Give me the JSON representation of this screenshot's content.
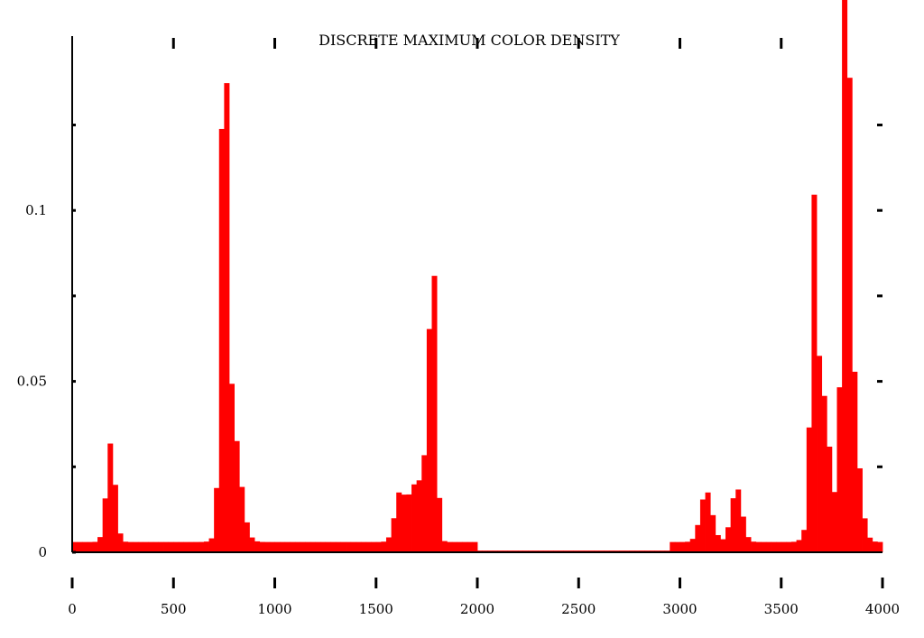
{
  "chart_data": {
    "type": "bar",
    "title": "DISCRETE MAXIMUM COLOR DENSITY",
    "xlabel": "",
    "ylabel": "",
    "xlim": [
      0,
      4000
    ],
    "ylim": [
      0,
      0.151
    ],
    "x_ticks": [
      0,
      500,
      1000,
      1500,
      2000,
      2500,
      3000,
      3500,
      4000
    ],
    "x_tick_labels": [
      "0",
      "500",
      "1000",
      "1500",
      "2000",
      "2500",
      "3000",
      "3500",
      "4000"
    ],
    "y_ticks": [
      0,
      0.05,
      0.1
    ],
    "y_tick_labels": [
      "0",
      "0.05",
      "0.1"
    ],
    "bin_width": 25,
    "bar_color": "#ff0000",
    "grid": false,
    "peaks": [
      {
        "x": 190,
        "y": 0.029,
        "w": 45
      },
      {
        "x": 750,
        "y": 0.142,
        "w": 35
      },
      {
        "x": 790,
        "y": 0.035,
        "w": 80
      },
      {
        "x": 1620,
        "y": 0.015,
        "w": 55
      },
      {
        "x": 1680,
        "y": 0.013,
        "w": 45
      },
      {
        "x": 1780,
        "y": 0.08,
        "w": 35
      },
      {
        "x": 1740,
        "y": 0.022,
        "w": 60
      },
      {
        "x": 3130,
        "y": 0.015,
        "w": 60
      },
      {
        "x": 3280,
        "y": 0.016,
        "w": 55
      },
      {
        "x": 3660,
        "y": 0.075,
        "w": 30
      },
      {
        "x": 3700,
        "y": 0.045,
        "w": 80
      },
      {
        "x": 3820,
        "y": 0.15,
        "w": 40
      },
      {
        "x": 3850,
        "y": 0.04,
        "w": 70
      }
    ],
    "base_segments": [
      {
        "from": 0,
        "to": 2000,
        "y": 0.003
      },
      {
        "from": 2000,
        "to": 2950,
        "y": 0.0005
      },
      {
        "from": 2950,
        "to": 4000,
        "y": 0.003
      }
    ]
  }
}
